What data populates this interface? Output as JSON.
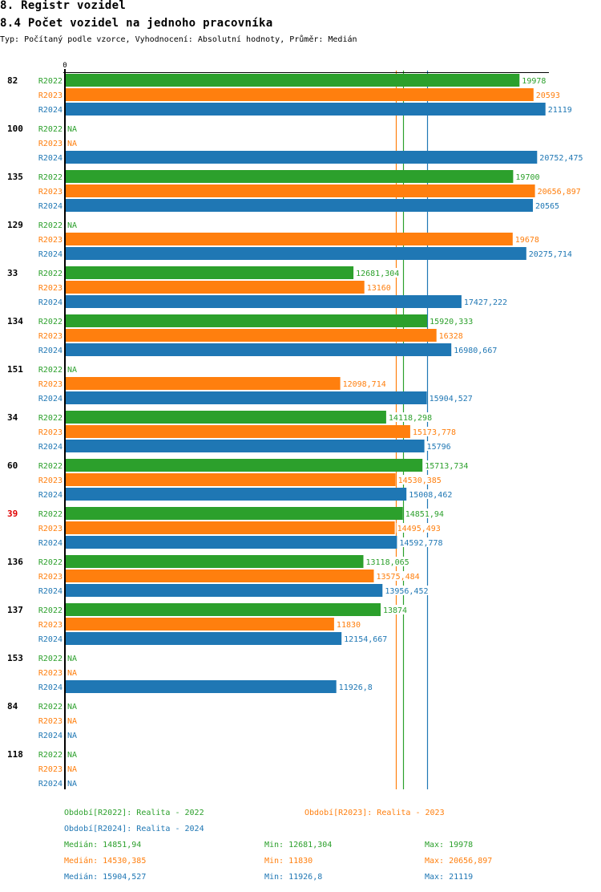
{
  "header": {
    "title": "8. Registr vozidel",
    "subtitle": "8.4 Počet vozidel na jednoho pracovníka",
    "description": "Typ: Počítaný podle vzorce, Vyhodnocení: Absolutní hodnoty, Průměr: Medián"
  },
  "colors": {
    "R2022": "#2ca02c",
    "R2023": "#ff7f0e",
    "R2024": "#1f77b4",
    "highlight": "#e00000",
    "axis": "#000000"
  },
  "chart_data": {
    "type": "bar",
    "orientation": "horizontal",
    "title": "8.4 Počet vozidel na jednoho pracovníka",
    "xlabel": "",
    "ylabel": "",
    "x_tick_labels": [
      "0"
    ],
    "xlim": [
      0,
      21270
    ],
    "grid": false,
    "na_label": "NA",
    "highlighted_category": "39",
    "series_names": [
      "R2022",
      "R2023",
      "R2024"
    ],
    "categories": [
      "82",
      "100",
      "135",
      "129",
      "33",
      "134",
      "151",
      "34",
      "60",
      "39",
      "136",
      "137",
      "153",
      "84",
      "118"
    ],
    "series": [
      {
        "name": "R2022",
        "values": [
          19978,
          null,
          19700,
          null,
          12681.304,
          15920.333,
          null,
          14118.298,
          15713.734,
          14851.94,
          13118.065,
          13874,
          null,
          null,
          null
        ],
        "labels": [
          "19978",
          "NA",
          "19700",
          "NA",
          "12681,304",
          "15920,333",
          "NA",
          "14118,298",
          "15713,734",
          "14851,94",
          "13118,065",
          "13874",
          "NA",
          "NA",
          "NA"
        ]
      },
      {
        "name": "R2023",
        "values": [
          20593,
          null,
          20656.897,
          19678,
          13160,
          16328,
          12098.714,
          15173.778,
          14530.385,
          14495.493,
          13575.484,
          11830,
          null,
          null,
          null
        ],
        "labels": [
          "20593",
          "NA",
          "20656,897",
          "19678",
          "13160",
          "16328",
          "12098,714",
          "15173,778",
          "14530,385",
          "14495,493",
          "13575,484",
          "11830",
          "NA",
          "NA",
          "NA"
        ]
      },
      {
        "name": "R2024",
        "values": [
          21119,
          20752.475,
          20565,
          20275.714,
          17427.222,
          16980.667,
          15904.527,
          15796,
          15008.462,
          14592.778,
          13956.452,
          12154.667,
          11926.8,
          null,
          null
        ],
        "labels": [
          "21119",
          "20752,475",
          "20565",
          "20275,714",
          "17427,222",
          "16980,667",
          "15904,527",
          "15796",
          "15008,462",
          "14592,778",
          "13956,452",
          "12154,667",
          "11926,8",
          "NA",
          "NA"
        ]
      }
    ],
    "reference_lines": [
      {
        "series": "R2022",
        "type": "median",
        "value": 14851.94
      },
      {
        "series": "R2023",
        "type": "median",
        "value": 14530.385
      },
      {
        "series": "R2024",
        "type": "median",
        "value": 15904.527
      }
    ]
  },
  "legend": {
    "periods": [
      {
        "series": "R2022",
        "text": "Období[R2022]: Realita - 2022"
      },
      {
        "series": "R2023",
        "text": "Období[R2023]: Realita - 2023"
      },
      {
        "series": "R2024",
        "text": "Období[R2024]: Realita - 2024"
      }
    ],
    "stats": [
      {
        "series": "R2022",
        "median": "Medián: 14851,94",
        "min": "Min: 12681,304",
        "max": "Max: 19978"
      },
      {
        "series": "R2023",
        "median": "Medián: 14530,385",
        "min": "Min: 11830",
        "max": "Max: 20656,897"
      },
      {
        "series": "R2024",
        "median": "Medián: 15904,527",
        "min": "Min: 11926,8",
        "max": "Max: 21119"
      }
    ]
  }
}
